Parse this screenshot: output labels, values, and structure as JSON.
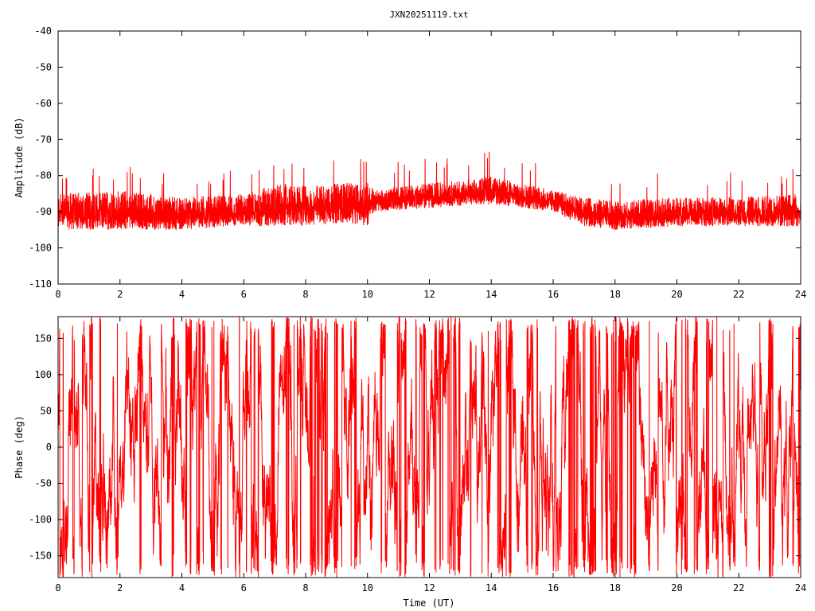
{
  "title": "JXN20251119.txt",
  "chart_data": [
    {
      "type": "line",
      "ylabel": "Amplitude (dB)",
      "xlabel": "",
      "xlim": [
        0,
        24
      ],
      "ylim": [
        -110,
        -40
      ],
      "xticks": [
        "0",
        "2",
        "4",
        "6",
        "8",
        "10",
        "12",
        "14",
        "16",
        "18",
        "20",
        "22",
        "24"
      ],
      "yticks": [
        "-40",
        "-50",
        "-60",
        "-70",
        "-80",
        "-90",
        "-100",
        "-110"
      ],
      "series_color": "#ff0000",
      "envelope": {
        "hours": [
          0,
          2,
          4,
          6,
          7.3,
          8,
          9.3,
          10,
          10.2,
          12,
          13.5,
          14,
          16,
          17,
          18,
          20,
          22,
          24
        ],
        "upper": [
          -85,
          -84,
          -86,
          -85,
          -82,
          -83,
          -82,
          -81,
          -84,
          -82,
          -81,
          -80,
          -84,
          -86,
          -87,
          -86,
          -86,
          -85
        ],
        "lower": [
          -95,
          -95,
          -95,
          -94,
          -94,
          -94,
          -93,
          -94,
          -90,
          -89,
          -88,
          -88,
          -90,
          -94,
          -95,
          -94,
          -94,
          -94
        ]
      }
    },
    {
      "type": "line",
      "ylabel": "Phase (deg)",
      "xlabel": "Time (UT)",
      "xlim": [
        0,
        24
      ],
      "ylim": [
        -180,
        180
      ],
      "xticks": [
        "0",
        "2",
        "4",
        "6",
        "8",
        "10",
        "12",
        "14",
        "16",
        "18",
        "20",
        "22",
        "24"
      ],
      "yticks": [
        "150",
        "100",
        "50",
        "0",
        "-50",
        "-100",
        "-150"
      ],
      "series_color": "#ff0000",
      "envelope": {
        "hours": [
          0,
          24
        ],
        "upper": [
          180,
          180
        ],
        "lower": [
          -180,
          -180
        ]
      }
    }
  ]
}
